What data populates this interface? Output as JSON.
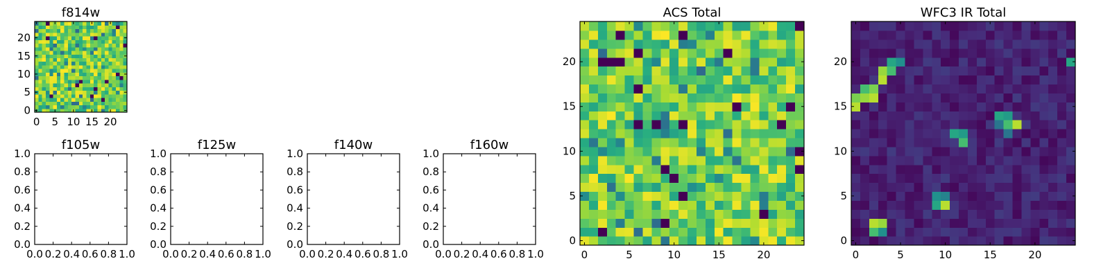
{
  "chart_data": [
    {
      "id": "f814w",
      "type": "heatmap",
      "title": "f814w",
      "xlim": [
        -0.5,
        24.5
      ],
      "ylim": [
        -0.5,
        24.5
      ],
      "xticks": [
        0,
        5,
        10,
        15,
        20
      ],
      "xtick_labels": [
        "0",
        "5",
        "10",
        "15",
        "20"
      ],
      "yticks": [
        0,
        5,
        10,
        15,
        20
      ],
      "ytick_labels": [
        "0",
        "5",
        "10",
        "15",
        "20"
      ],
      "colormap": "viridis",
      "pattern": "noise",
      "seed": 11,
      "grid_size": 25,
      "origin": "lower"
    },
    {
      "id": "f105w",
      "type": "heatmap",
      "title": "f105w",
      "empty": true,
      "xlim": [
        0,
        1
      ],
      "ylim": [
        0,
        1
      ],
      "xtick_labels": [
        "0.0",
        "0.2",
        "0.4",
        "0.6",
        "0.8",
        "1.0"
      ],
      "ytick_labels": [
        "0.0",
        "0.2",
        "0.4",
        "0.6",
        "0.8",
        "1.0"
      ]
    },
    {
      "id": "f125w",
      "type": "heatmap",
      "title": "f125w",
      "empty": true,
      "xlim": [
        0,
        1
      ],
      "ylim": [
        0,
        1
      ],
      "xtick_labels": [
        "0.0",
        "0.2",
        "0.4",
        "0.6",
        "0.8",
        "1.0"
      ],
      "ytick_labels": [
        "0.0",
        "0.2",
        "0.4",
        "0.6",
        "0.8",
        "1.0"
      ]
    },
    {
      "id": "f140w",
      "type": "heatmap",
      "title": "f140w",
      "empty": true,
      "xlim": [
        0,
        1
      ],
      "ylim": [
        0,
        1
      ],
      "xtick_labels": [
        "0.0",
        "0.2",
        "0.4",
        "0.6",
        "0.8",
        "1.0"
      ],
      "ytick_labels": [
        "0.0",
        "0.2",
        "0.4",
        "0.6",
        "0.8",
        "1.0"
      ]
    },
    {
      "id": "f160w",
      "type": "heatmap",
      "title": "f160w",
      "empty": true,
      "xlim": [
        0,
        1
      ],
      "ylim": [
        0,
        1
      ],
      "xtick_labels": [
        "0.0",
        "0.2",
        "0.4",
        "0.6",
        "0.8",
        "1.0"
      ],
      "ytick_labels": [
        "0.0",
        "0.2",
        "0.4",
        "0.6",
        "0.8",
        "1.0"
      ]
    },
    {
      "id": "acs-total",
      "type": "heatmap",
      "title": "ACS Total",
      "xlim": [
        -0.5,
        24.5
      ],
      "ylim": [
        -0.5,
        24.5
      ],
      "xticks": [
        0,
        5,
        10,
        15,
        20
      ],
      "xtick_labels": [
        "0",
        "5",
        "10",
        "15",
        "20"
      ],
      "yticks": [
        0,
        5,
        10,
        15,
        20
      ],
      "ytick_labels": [
        "0",
        "5",
        "10",
        "15",
        "20"
      ],
      "colormap": "viridis",
      "pattern": "noise",
      "seed": 29,
      "grid_size": 25,
      "origin": "lower"
    },
    {
      "id": "wfc3-ir-total",
      "type": "heatmap",
      "title": "WFC3 IR Total",
      "xlim": [
        -0.5,
        24.5
      ],
      "ylim": [
        -0.5,
        24.5
      ],
      "xticks": [
        0,
        5,
        10,
        15,
        20
      ],
      "xtick_labels": [
        "0",
        "5",
        "10",
        "15",
        "20"
      ],
      "yticks": [
        0,
        5,
        10,
        15,
        20
      ],
      "ytick_labels": [
        "0",
        "5",
        "10",
        "15",
        "20"
      ],
      "colormap": "viridis",
      "pattern": "sources",
      "seed": 47,
      "grid_size": 25,
      "origin": "lower",
      "bright_cells": [
        [
          0,
          15,
          0.9
        ],
        [
          0,
          16,
          0.8
        ],
        [
          1,
          16,
          0.85
        ],
        [
          1,
          17,
          0.7
        ],
        [
          2,
          16,
          0.9
        ],
        [
          2,
          17,
          0.8
        ],
        [
          3,
          18,
          0.9
        ],
        [
          3,
          19,
          0.85
        ],
        [
          4,
          19,
          0.7
        ],
        [
          4,
          20,
          0.6
        ],
        [
          5,
          20,
          0.5
        ],
        [
          16,
          14,
          0.6
        ],
        [
          17,
          14,
          0.55
        ],
        [
          17,
          13,
          0.7
        ],
        [
          18,
          13,
          0.9
        ],
        [
          17,
          12,
          0.4
        ],
        [
          16,
          13,
          0.4
        ],
        [
          11,
          12,
          0.6
        ],
        [
          12,
          12,
          0.55
        ],
        [
          12,
          11,
          0.7
        ],
        [
          9,
          5,
          0.5
        ],
        [
          10,
          4,
          0.9
        ],
        [
          9,
          4,
          0.6
        ],
        [
          10,
          5,
          0.45
        ],
        [
          2,
          2,
          0.9
        ],
        [
          3,
          2,
          0.85
        ],
        [
          2,
          1,
          0.7
        ],
        [
          3,
          1,
          0.5
        ],
        [
          24,
          20,
          0.6
        ]
      ]
    }
  ]
}
